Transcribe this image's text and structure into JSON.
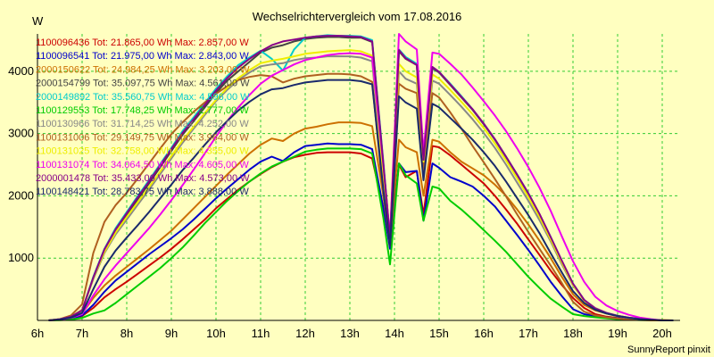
{
  "chart_data": {
    "type": "line",
    "title": "Wechselrichtervergleich vom 17.08.2016",
    "ylabel": "W",
    "xlabel": "",
    "footer": "SunnyReport pinxit",
    "x_tick_labels": [
      "6h",
      "7h",
      "8h",
      "9h",
      "10h",
      "11h",
      "12h",
      "13h",
      "14h",
      "15h",
      "16h",
      "17h",
      "18h",
      "19h",
      "20h"
    ],
    "x_tick_hours": [
      6,
      7,
      8,
      9,
      10,
      11,
      12,
      13,
      14,
      15,
      16,
      17,
      18,
      19,
      20
    ],
    "xlim": [
      6,
      20.4
    ],
    "ylim": [
      0,
      4600
    ],
    "y_ticks": [
      1000,
      2000,
      3000,
      4000
    ],
    "grid": true,
    "legend_position": "top-left",
    "x_hours": [
      6.25,
      6.5,
      6.75,
      7,
      7.25,
      7.5,
      7.75,
      8,
      8.25,
      8.5,
      8.75,
      9,
      9.25,
      9.5,
      9.75,
      10,
      10.25,
      10.5,
      10.75,
      11,
      11.25,
      11.5,
      11.75,
      12,
      12.25,
      12.5,
      12.75,
      13,
      13.25,
      13.5,
      13.75,
      13.9,
      14.1,
      14.25,
      14.5,
      14.65,
      14.85,
      15,
      15.25,
      15.5,
      15.75,
      16,
      16.25,
      16.5,
      16.75,
      17,
      17.25,
      17.5,
      17.75,
      18,
      18.25,
      18.5,
      18.75,
      19,
      19.25,
      19.5,
      19.75,
      20,
      20.25
    ],
    "series": [
      {
        "name": "1100096436 Tot: 21.865,00 Wh Max: 2.857,00 W",
        "color": "#cc0000",
        "values": [
          0,
          10,
          30,
          70,
          200,
          370,
          500,
          620,
          750,
          880,
          1010,
          1150,
          1300,
          1460,
          1620,
          1800,
          1950,
          2100,
          2230,
          2350,
          2460,
          2550,
          2620,
          2660,
          2690,
          2700,
          2700,
          2700,
          2680,
          2600,
          1800,
          1200,
          2500,
          2300,
          2400,
          1700,
          2800,
          2780,
          2650,
          2500,
          2350,
          2200,
          2000,
          1780,
          1550,
          1300,
          1050,
          800,
          570,
          360,
          200,
          100,
          60,
          40,
          25,
          15,
          10,
          5,
          0
        ]
      },
      {
        "name": "1100096541 Tot: 21.975,00 Wh Max: 2.843,00 W",
        "color": "#0000cc",
        "values": [
          0,
          10,
          30,
          80,
          250,
          460,
          640,
          780,
          920,
          1060,
          1190,
          1320,
          1460,
          1620,
          1790,
          1960,
          2120,
          2270,
          2420,
          2550,
          2630,
          2560,
          2700,
          2800,
          2820,
          2840,
          2830,
          2830,
          2820,
          2750,
          1800,
          1150,
          2520,
          2380,
          2400,
          1600,
          2520,
          2450,
          2300,
          2230,
          2150,
          2000,
          1830,
          1600,
          1370,
          1130,
          880,
          620,
          390,
          180,
          100,
          70,
          50,
          35,
          20,
          10,
          5,
          0,
          0
        ]
      },
      {
        "name": "2000150622 Tot: 24.984,25 Wh Max: 3.203,00 W",
        "color": "#cc7000",
        "values": [
          0,
          10,
          40,
          110,
          360,
          560,
          720,
          860,
          1000,
          1140,
          1290,
          1440,
          1620,
          1800,
          1980,
          2160,
          2340,
          2510,
          2680,
          2820,
          2920,
          2880,
          3000,
          3080,
          3110,
          3150,
          3180,
          3180,
          3170,
          3120,
          2000,
          1250,
          2900,
          2780,
          2700,
          2000,
          2900,
          2870,
          2700,
          2550,
          2440,
          2330,
          2180,
          2000,
          1780,
          1540,
          1280,
          1000,
          700,
          420,
          250,
          160,
          110,
          75,
          45,
          25,
          10,
          5,
          0
        ]
      },
      {
        "name": "2000154799 Tot: 35.097,75 Wh Max: 4.561,00 W",
        "color": "#444444",
        "values": [
          0,
          20,
          60,
          160,
          680,
          1120,
          1450,
          1700,
          1950,
          2200,
          2460,
          2720,
          2980,
          3200,
          3420,
          3650,
          3850,
          4000,
          4150,
          4300,
          4380,
          4420,
          4480,
          4520,
          4540,
          4550,
          4550,
          4540,
          4540,
          4470,
          2500,
          1300,
          4320,
          4200,
          4100,
          2600,
          4050,
          3980,
          3780,
          3580,
          3380,
          3150,
          2900,
          2620,
          2330,
          2030,
          1700,
          1330,
          950,
          580,
          320,
          180,
          110,
          70,
          40,
          20,
          10,
          0,
          0
        ]
      },
      {
        "name": "2000149892 Tot: 35.560,75 Wh Max: 4.596,00 W",
        "color": "#00cccc",
        "values": [
          0,
          20,
          60,
          160,
          700,
          1150,
          1480,
          1740,
          2000,
          2250,
          2510,
          2770,
          3040,
          3260,
          3490,
          3720,
          3920,
          4100,
          4220,
          4330,
          4200,
          4010,
          4350,
          4540,
          4560,
          4580,
          4570,
          4570,
          4560,
          4500,
          2550,
          1320,
          4350,
          4230,
          4120,
          2620,
          4070,
          3990,
          3800,
          3600,
          3390,
          3160,
          2910,
          2630,
          2340,
          2040,
          1700,
          1340,
          950,
          590,
          330,
          190,
          120,
          75,
          45,
          25,
          10,
          0,
          0
        ]
      },
      {
        "name": "1100129553 Tot: 17.748,25 Wh Max: 2.777,00 W",
        "color": "#00cc00",
        "values": [
          0,
          5,
          15,
          40,
          110,
          160,
          280,
          420,
          560,
          700,
          840,
          1000,
          1170,
          1360,
          1560,
          1740,
          1920,
          2080,
          2230,
          2360,
          2470,
          2550,
          2630,
          2710,
          2740,
          2760,
          2760,
          2760,
          2750,
          2680,
          1650,
          900,
          2520,
          2330,
          2200,
          1600,
          2150,
          2120,
          1920,
          1780,
          1620,
          1450,
          1280,
          1100,
          900,
          700,
          520,
          350,
          220,
          100,
          70,
          50,
          35,
          20,
          12,
          6,
          3,
          0,
          0
        ]
      },
      {
        "name": "1100130966 Tot: 31.714,25 Wh Max: 4.252,00 W",
        "color": "#888888",
        "values": [
          0,
          20,
          60,
          170,
          660,
          1080,
          1380,
          1620,
          1860,
          2100,
          2350,
          2600,
          2850,
          3080,
          3300,
          3520,
          3700,
          3860,
          3980,
          4080,
          4110,
          4130,
          4180,
          4210,
          4220,
          4240,
          4240,
          4240,
          4220,
          4160,
          2200,
          1250,
          4000,
          3880,
          3800,
          2500,
          3850,
          3800,
          3620,
          3430,
          3230,
          3010,
          2770,
          2500,
          2210,
          1920,
          1610,
          1270,
          900,
          560,
          330,
          200,
          120,
          75,
          40,
          20,
          10,
          0,
          0
        ]
      },
      {
        "name": "1100131006 Tot: 29.149,75 Wh Max: 3.964,00 W",
        "color": "#b06020",
        "values": [
          0,
          20,
          80,
          260,
          1080,
          1580,
          1850,
          2050,
          2280,
          2520,
          2760,
          2990,
          3180,
          3350,
          3500,
          3640,
          3760,
          3860,
          3910,
          3940,
          3920,
          3820,
          3880,
          3920,
          3940,
          3960,
          3960,
          3950,
          3920,
          3830,
          2000,
          1200,
          3800,
          3720,
          3650,
          2400,
          3650,
          3580,
          3340,
          3080,
          2800,
          2540,
          2270,
          1990,
          1700,
          1420,
          1150,
          880,
          600,
          300,
          140,
          80,
          50,
          30,
          15,
          7,
          0,
          0,
          0
        ]
      },
      {
        "name": "1100131025 Tot: 32.758,00 Wh Max: 4.355,00 W",
        "color": "#eeee00",
        "values": [
          0,
          20,
          60,
          165,
          680,
          1100,
          1410,
          1660,
          1900,
          2140,
          2390,
          2640,
          2890,
          3110,
          3330,
          3540,
          3730,
          3890,
          4020,
          4130,
          4170,
          4200,
          4240,
          4280,
          4300,
          4320,
          4330,
          4340,
          4320,
          4250,
          2300,
          1280,
          4120,
          4000,
          3900,
          2550,
          3950,
          3880,
          3700,
          3510,
          3310,
          3090,
          2840,
          2570,
          2280,
          1980,
          1660,
          1300,
          930,
          570,
          320,
          190,
          110,
          70,
          40,
          20,
          10,
          0,
          0
        ]
      },
      {
        "name": "1100131074 Tot: 34.064,50 Wh Max: 4.605,00 W",
        "color": "#ee00ee",
        "values": [
          0,
          10,
          40,
          100,
          400,
          660,
          880,
          1080,
          1280,
          1480,
          1700,
          1930,
          2170,
          2420,
          2680,
          2950,
          3200,
          3420,
          3620,
          3800,
          3930,
          4020,
          4110,
          4180,
          4220,
          4260,
          4280,
          4290,
          4280,
          4220,
          2500,
          1350,
          4600,
          4480,
          4350,
          2700,
          4300,
          4280,
          4120,
          3950,
          3740,
          3520,
          3290,
          3040,
          2760,
          2460,
          2130,
          1760,
          1350,
          950,
          620,
          380,
          240,
          150,
          90,
          45,
          20,
          0,
          0
        ]
      },
      {
        "name": "2000001478 Tot: 35.433,00 Wh Max: 4.573,00 W",
        "color": "#880088",
        "values": [
          0,
          20,
          60,
          160,
          690,
          1140,
          1460,
          1720,
          1980,
          2230,
          2490,
          2750,
          3010,
          3230,
          3460,
          3690,
          3890,
          4060,
          4200,
          4320,
          4420,
          4480,
          4510,
          4540,
          4560,
          4570,
          4570,
          4560,
          4550,
          4480,
          2520,
          1310,
          4340,
          4210,
          4100,
          2580,
          4070,
          3990,
          3790,
          3590,
          3390,
          3160,
          2910,
          2630,
          2340,
          2040,
          1710,
          1340,
          960,
          590,
          330,
          190,
          120,
          75,
          45,
          25,
          10,
          0,
          0
        ]
      },
      {
        "name": "1100148421 Tot: 28.783,75 Wh Max: 3.888,00 W",
        "color": "#1a2a6c",
        "values": [
          0,
          15,
          45,
          120,
          500,
          860,
          1120,
          1330,
          1530,
          1740,
          1960,
          2180,
          2410,
          2610,
          2820,
          3020,
          3200,
          3370,
          3510,
          3630,
          3710,
          3730,
          3780,
          3820,
          3840,
          3860,
          3860,
          3860,
          3840,
          3790,
          2100,
          1200,
          3600,
          3500,
          3400,
          2250,
          3480,
          3420,
          3250,
          3080,
          2900,
          2700,
          2480,
          2230,
          1960,
          1690,
          1400,
          1080,
          770,
          470,
          280,
          170,
          110,
          70,
          40,
          20,
          10,
          0,
          0
        ]
      }
    ]
  }
}
